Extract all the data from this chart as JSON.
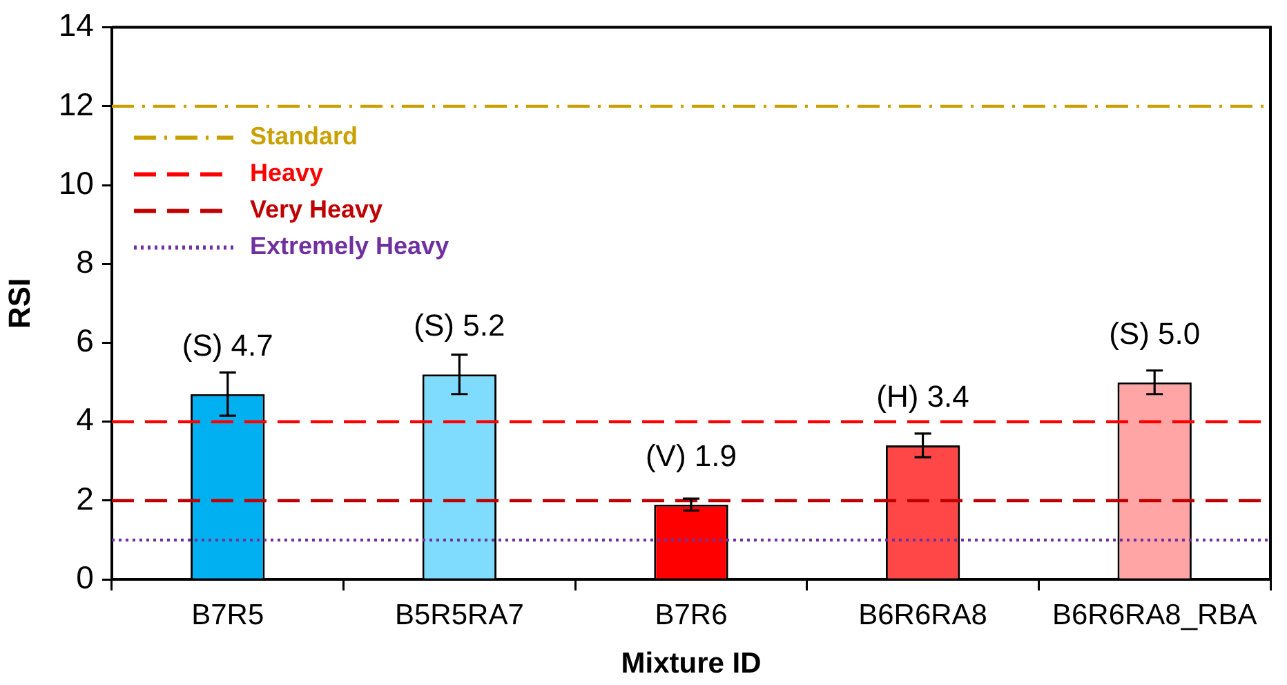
{
  "chart_data": {
    "type": "bar",
    "xlabel": "Mixture ID",
    "ylabel": "RSI",
    "categories": [
      "B7R5",
      "B5R5RA7",
      "B7R6",
      "B6R6RA8",
      "B6R6RA8_RBA"
    ],
    "values": [
      4.7,
      5.2,
      1.9,
      3.4,
      5.0
    ],
    "colors": [
      "#00b0f0",
      "#7fdcff",
      "#ff0000",
      "#ff4747",
      "#ffa5a5"
    ],
    "errors": [
      0.55,
      0.5,
      0.15,
      0.3,
      0.3
    ],
    "value_labels": [
      "(S) 4.7",
      "(S) 5.2",
      "(V) 1.9",
      "(H) 3.4",
      "(S) 5.0"
    ],
    "ylim": [
      0,
      14
    ],
    "yticks": [
      0,
      2,
      4,
      6,
      8,
      10,
      12,
      14
    ],
    "ref_lines": [
      {
        "axis": "y",
        "value": 12,
        "label": "Standard",
        "color": "#c9a000",
        "line_style": "dashdot"
      },
      {
        "axis": "y",
        "value": 4,
        "label": "Heavy",
        "color": "#ff0000",
        "line_style": "dashed"
      },
      {
        "axis": "y",
        "value": 2,
        "label": "Very Heavy",
        "color": "#c00000",
        "line_style": "dashed"
      },
      {
        "axis": "y",
        "value": 1,
        "label": "Extremely Heavy",
        "color": "#7030a0",
        "line_style": "dotted"
      }
    ],
    "legend": "top left"
  }
}
